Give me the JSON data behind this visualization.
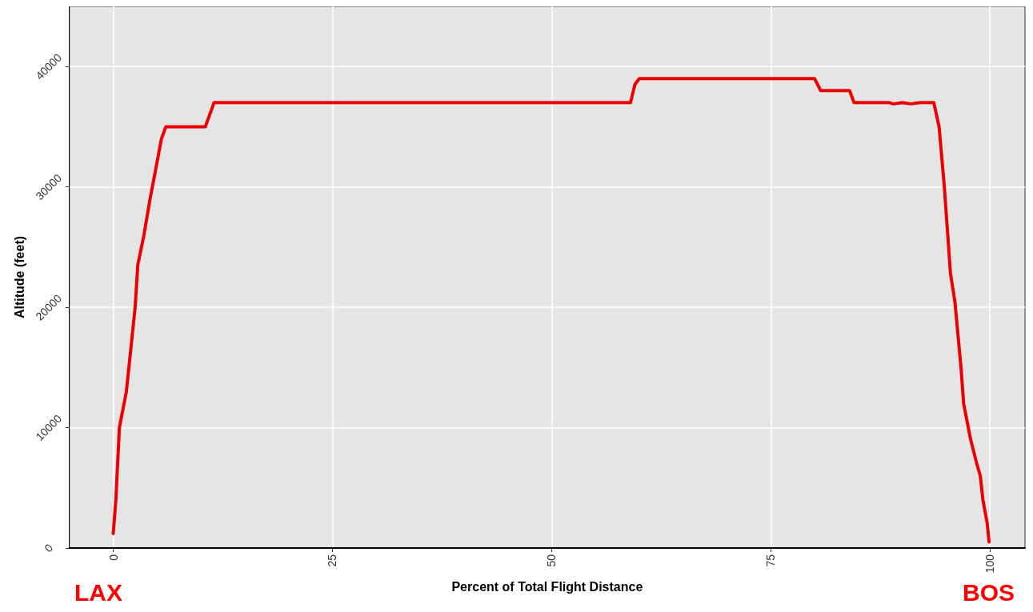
{
  "chart_data": {
    "type": "line",
    "xlabel": "Percent of Total Flight Distance",
    "ylabel": "Altitude (feet)",
    "annotations": [
      "LAX",
      "BOS"
    ],
    "series": [
      {
        "color": "#ee0000",
        "x": [
          0,
          0.3,
          0.7,
          1.5,
          2.5,
          2.8,
          3.5,
          4.2,
          4.8,
          5.5,
          6,
          10.5,
          11.5,
          59,
          59.5,
          60,
          80,
          80.7,
          84,
          84.5,
          88.5,
          89,
          90,
          91,
          92,
          93.6,
          94.2,
          94.8,
          95.5,
          96,
          96.7,
          97,
          97.8,
          98.5,
          98.9,
          99.2,
          99.7,
          99.9
        ],
        "values": [
          1200,
          4000,
          10000,
          13000,
          20000,
          23500,
          26000,
          29000,
          31300,
          34000,
          35000,
          35000,
          37000,
          37000,
          38500,
          39000,
          39000,
          38000,
          38000,
          37000,
          37000,
          36900,
          37000,
          36900,
          37000,
          37000,
          35000,
          30000,
          22800,
          20500,
          15000,
          12000,
          9000,
          7000,
          6000,
          4000,
          2000,
          500
        ]
      }
    ],
    "xlim": [
      -5,
      104
    ],
    "ylim": [
      0,
      45000
    ],
    "xticks": [
      0,
      25,
      50,
      75,
      100
    ],
    "yticks": [
      0,
      10000,
      20000,
      30000,
      40000
    ],
    "grid": true,
    "marker": "none",
    "line_style": "solid"
  }
}
